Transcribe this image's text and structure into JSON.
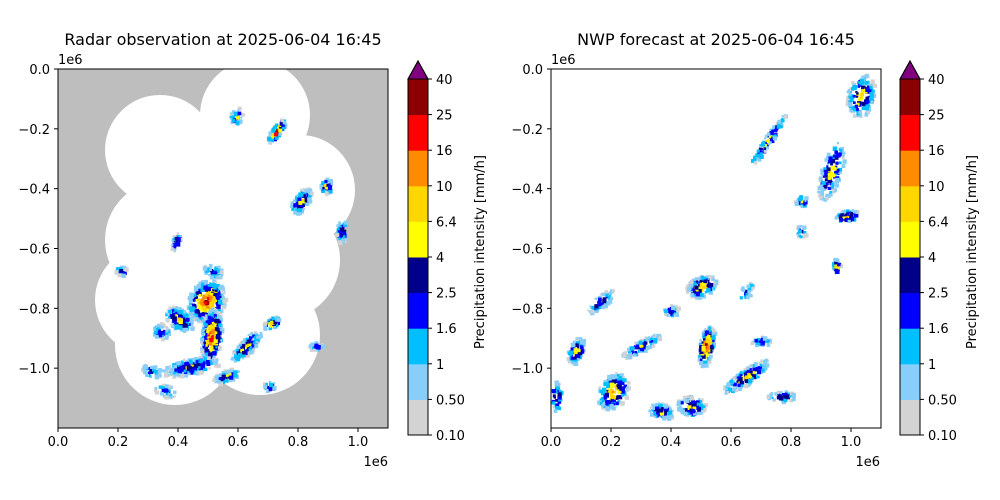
{
  "chart_data": [
    {
      "type": "heatmap",
      "title": "Radar observation at 2025-06-04 16:45",
      "x_ticks": [
        "0.0",
        "0.2",
        "0.4",
        "0.6",
        "0.8",
        "1.0"
      ],
      "x_tick_values": [
        0,
        0.2,
        0.4,
        0.6,
        0.8,
        1.0
      ],
      "y_ticks": [
        "0.0",
        "−0.2",
        "−0.4",
        "−0.6",
        "−0.8",
        "−1.0"
      ],
      "y_tick_values": [
        0,
        -0.2,
        -0.4,
        -0.6,
        -0.8,
        -1.0
      ],
      "x_offset_label": "1e6",
      "y_offset_label": "1e6",
      "xlim": [
        0,
        1.1
      ],
      "ylim": [
        -1.2,
        0
      ],
      "colorbar": {
        "label": "Precipitation intensity [mm/h]",
        "levels": [
          "0.10",
          "0.50",
          "1",
          "1.6",
          "2.5",
          "4",
          "6.4",
          "10",
          "16",
          "25",
          "40"
        ],
        "colors": [
          "#d3d3d3",
          "#87cefa",
          "#00bfff",
          "#0000ff",
          "#00008b",
          "#ffff00",
          "#ffd700",
          "#ff8c00",
          "#ff0000",
          "#8b0000"
        ],
        "extend_color": "#800080"
      }
    },
    {
      "type": "heatmap",
      "title": "NWP forecast at 2025-06-04 16:45",
      "x_ticks": [
        "0.0",
        "0.2",
        "0.4",
        "0.6",
        "0.8",
        "1.0"
      ],
      "x_tick_values": [
        0,
        0.2,
        0.4,
        0.6,
        0.8,
        1.0
      ],
      "y_ticks": [
        "0.0",
        "−0.2",
        "−0.4",
        "−0.6",
        "−0.8",
        "−1.0"
      ],
      "y_tick_values": [
        0,
        -0.2,
        -0.4,
        -0.6,
        -0.8,
        -1.0
      ],
      "x_offset_label": "1e6",
      "y_offset_label": "1e6",
      "xlim": [
        0,
        1.1
      ],
      "ylim": [
        -1.2,
        0
      ],
      "colorbar": {
        "label": "Precipitation intensity [mm/h]",
        "levels": [
          "0.10",
          "0.50",
          "1",
          "1.6",
          "2.5",
          "4",
          "6.4",
          "10",
          "16",
          "25",
          "40"
        ],
        "colors": [
          "#d3d3d3",
          "#87cefa",
          "#00bfff",
          "#0000ff",
          "#00008b",
          "#ffff00",
          "#ffd700",
          "#ff8c00",
          "#ff0000",
          "#8b0000"
        ],
        "extend_color": "#800080"
      }
    }
  ],
  "colors": {
    "no_coverage": "#bebebe",
    "background": "#ffffff"
  }
}
